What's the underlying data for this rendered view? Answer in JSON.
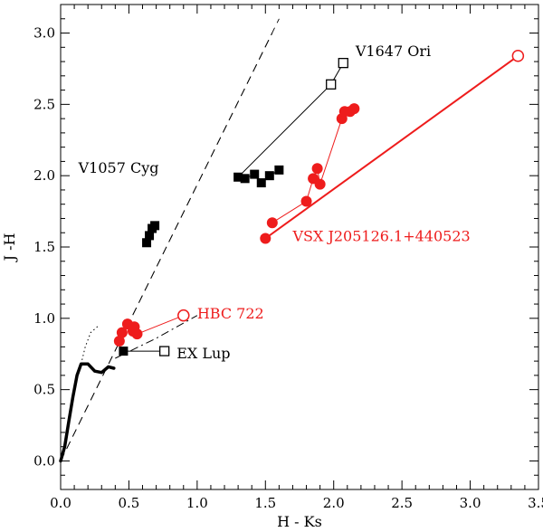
{
  "chart_data": {
    "type": "scatter",
    "title": "",
    "xlabel": "H - Ks",
    "ylabel": "J -H",
    "xlim": [
      0.0,
      3.5
    ],
    "ylim": [
      -0.2,
      3.2
    ],
    "xticks": [
      "0.0",
      "0.5",
      "1.0",
      "1.5",
      "2.0",
      "2.5",
      "3.0",
      "3.5"
    ],
    "yticks": [
      "0.0",
      "0.5",
      "1.0",
      "1.5",
      "2.0",
      "2.5",
      "3.0"
    ],
    "colors": {
      "black": "#000000",
      "red": "#ee1c1c"
    },
    "reference_lines": [
      {
        "name": "dwarf-locus",
        "style": "solid-thick",
        "points": [
          [
            0.0,
            0.0
          ],
          [
            0.03,
            0.1
          ],
          [
            0.06,
            0.28
          ],
          [
            0.09,
            0.45
          ],
          [
            0.12,
            0.6
          ],
          [
            0.15,
            0.68
          ],
          [
            0.2,
            0.68
          ],
          [
            0.25,
            0.63
          ],
          [
            0.3,
            0.62
          ],
          [
            0.35,
            0.66
          ],
          [
            0.39,
            0.65
          ]
        ]
      },
      {
        "name": "giant-branch",
        "style": "dotted",
        "points": [
          [
            0.15,
            0.68
          ],
          [
            0.18,
            0.8
          ],
          [
            0.22,
            0.9
          ],
          [
            0.28,
            0.95
          ]
        ]
      },
      {
        "name": "ctts-locus",
        "style": "dash-dot",
        "points": [
          [
            0.4,
            0.72
          ],
          [
            0.7,
            0.86
          ],
          [
            0.85,
            0.94
          ],
          [
            1.0,
            1.02
          ]
        ]
      },
      {
        "name": "reddening-band-left",
        "style": "dashed",
        "points": [
          [
            0.0,
            0.0
          ],
          [
            1.55,
            3.0
          ]
        ]
      },
      {
        "name": "reddening-band-right",
        "style": "dashed",
        "points": [
          [
            0.0,
            0.0
          ],
          [
            1.6,
            3.1
          ]
        ]
      }
    ],
    "series": [
      {
        "name": "V1057 Cyg",
        "color": "black",
        "marker": "filled-square",
        "points": [
          [
            0.63,
            1.53
          ],
          [
            0.65,
            1.58
          ],
          [
            0.67,
            1.63
          ],
          [
            0.69,
            1.65
          ]
        ]
      },
      {
        "name": "V1647 Ori",
        "color": "black",
        "marker": "filled-square",
        "points": [
          [
            1.3,
            1.99
          ],
          [
            1.35,
            1.98
          ],
          [
            1.42,
            2.01
          ],
          [
            1.47,
            1.95
          ],
          [
            1.53,
            2.0
          ],
          [
            1.6,
            2.04
          ]
        ]
      },
      {
        "name": "V1647 Ori open",
        "color": "black",
        "marker": "open-square",
        "points": [
          [
            1.98,
            2.64
          ],
          [
            2.07,
            2.79
          ]
        ]
      },
      {
        "name": "EX Lup",
        "color": "black",
        "marker": "filled-square",
        "points": [
          [
            0.46,
            0.77
          ]
        ]
      },
      {
        "name": "EX Lup open",
        "color": "black",
        "marker": "open-square",
        "points": [
          [
            0.76,
            0.77
          ]
        ]
      },
      {
        "name": "HBC 722",
        "color": "red",
        "marker": "filled-circle",
        "points": [
          [
            0.43,
            0.84
          ],
          [
            0.45,
            0.9
          ],
          [
            0.49,
            0.96
          ],
          [
            0.53,
            0.91
          ],
          [
            0.54,
            0.94
          ],
          [
            0.56,
            0.89
          ]
        ]
      },
      {
        "name": "HBC 722 open",
        "color": "red",
        "marker": "open-circle",
        "points": [
          [
            0.9,
            1.02
          ]
        ]
      },
      {
        "name": "VSX J205126.1+440523",
        "color": "red",
        "marker": "filled-circle",
        "points": [
          [
            1.5,
            1.56
          ],
          [
            1.55,
            1.67
          ],
          [
            1.8,
            1.82
          ],
          [
            1.85,
            1.98
          ],
          [
            1.88,
            2.05
          ],
          [
            1.9,
            1.94
          ],
          [
            2.06,
            2.4
          ],
          [
            2.08,
            2.45
          ],
          [
            2.12,
            2.45
          ],
          [
            2.15,
            2.47
          ]
        ]
      },
      {
        "name": "VSX J205126.1+440523 open",
        "color": "red",
        "marker": "open-circle",
        "points": [
          [
            3.35,
            2.84
          ]
        ]
      }
    ],
    "connections": [
      {
        "color": "black",
        "width": 1,
        "points": [
          [
            0.46,
            0.77
          ],
          [
            0.76,
            0.77
          ]
        ]
      },
      {
        "color": "black",
        "width": 1,
        "points": [
          [
            1.3,
            1.99
          ],
          [
            1.98,
            2.64
          ],
          [
            2.07,
            2.79
          ]
        ]
      },
      {
        "color": "black",
        "width": 1,
        "points": [
          [
            1.35,
            1.98
          ],
          [
            1.42,
            2.01
          ],
          [
            1.47,
            1.95
          ],
          [
            1.53,
            2.0
          ],
          [
            1.6,
            2.04
          ]
        ]
      },
      {
        "color": "red",
        "width": 1,
        "points": [
          [
            0.43,
            0.84
          ],
          [
            0.49,
            0.96
          ],
          [
            0.56,
            0.89
          ],
          [
            0.9,
            1.02
          ]
        ]
      },
      {
        "color": "red",
        "width": 1,
        "points": [
          [
            1.55,
            1.67
          ],
          [
            1.8,
            1.82
          ],
          [
            1.85,
            1.98
          ],
          [
            1.88,
            2.05
          ],
          [
            1.9,
            1.94
          ],
          [
            2.06,
            2.4
          ],
          [
            2.08,
            2.45
          ],
          [
            2.15,
            2.47
          ]
        ]
      },
      {
        "color": "red",
        "width": 2,
        "points": [
          [
            1.5,
            1.56
          ],
          [
            3.35,
            2.84
          ]
        ]
      }
    ],
    "annotations": [
      {
        "text": "V1647 Ori",
        "x": 2.16,
        "y": 2.84,
        "color": "black"
      },
      {
        "text": "V1057 Cyg",
        "x": 0.13,
        "y": 2.02,
        "color": "black"
      },
      {
        "text": "VSX J205126.1+440523",
        "x": 1.7,
        "y": 1.54,
        "color": "red"
      },
      {
        "text": "HBC 722",
        "x": 1.0,
        "y": 1.0,
        "color": "red"
      },
      {
        "text": "EX Lup",
        "x": 0.85,
        "y": 0.72,
        "color": "black"
      }
    ]
  }
}
